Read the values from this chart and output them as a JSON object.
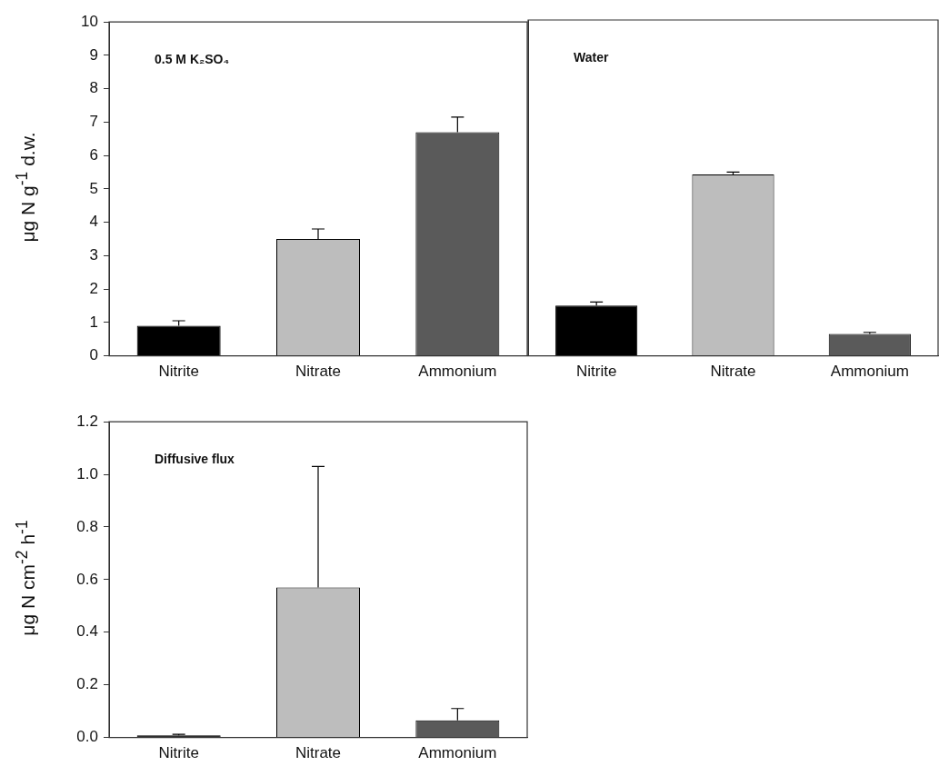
{
  "chart_data": [
    {
      "type": "bar",
      "categories": [
        "Nitrite",
        "Nitrate",
        "Ammonium"
      ],
      "values": [
        0.9,
        3.5,
        6.7
      ],
      "colors": [
        "#000000",
        "#bdbdbd",
        "#5a5a5a"
      ],
      "errors": [
        [
          0.9,
          1.05
        ],
        [
          3.5,
          3.8
        ],
        [
          6.7,
          7.15
        ]
      ],
      "ylabel": "μg N g$^{-1}$ d.w.",
      "ylim": [
        0,
        10
      ],
      "yticks": [
        0,
        1,
        2,
        3,
        4,
        5,
        6,
        7,
        8,
        9,
        10
      ],
      "grid": false,
      "legend": false,
      "annotations": [
        "0.5 M K₂SO₄"
      ]
    },
    {
      "type": "bar",
      "categories": [
        "Nitrite",
        "Nitrate",
        "Ammonium"
      ],
      "values": [
        1.5,
        5.4,
        0.65
      ],
      "colors": [
        "#000000",
        "#bdbdbd",
        "#5a5a5a"
      ],
      "errors": [
        [
          1.5,
          1.6
        ],
        [
          5.4,
          5.47
        ],
        [
          0.65,
          0.7
        ]
      ],
      "ylim": [
        0,
        10
      ],
      "yticks": [
        0,
        1,
        2,
        3,
        4,
        5,
        6,
        7,
        8,
        9,
        10
      ],
      "tick_labels": "x",
      "grid": false,
      "legend": false,
      "annotations": [
        "Water"
      ]
    },
    {
      "type": "bar",
      "categories": [
        "Nitrite",
        "Nitrate",
        "Ammonium"
      ],
      "values": [
        0.008,
        0.57,
        0.065
      ],
      "colors": [
        "#000000",
        "#bdbdbd",
        "#5a5a5a"
      ],
      "errors": [
        [
          0.008,
          0.012
        ],
        [
          0.57,
          1.03
        ],
        [
          0.065,
          0.11
        ]
      ],
      "ylabel": "μg N cm$^{-2}$ h$^{-1}$",
      "ylim": [
        0,
        1.2
      ],
      "yticks": [
        {
          "value": 0,
          "label": "0.0"
        },
        {
          "value": 0.2,
          "label": "0.2"
        },
        {
          "value": 0.4,
          "label": "0.4"
        },
        {
          "value": 0.6,
          "label": "0.6"
        },
        {
          "value": 0.8,
          "label": "0.8"
        },
        {
          "value": 1.0,
          "label": "1.0"
        },
        {
          "value": 1.2,
          "label": "1.2"
        }
      ],
      "grid": false,
      "legend": false,
      "annotations": [
        "Diffusive flux"
      ]
    }
  ]
}
